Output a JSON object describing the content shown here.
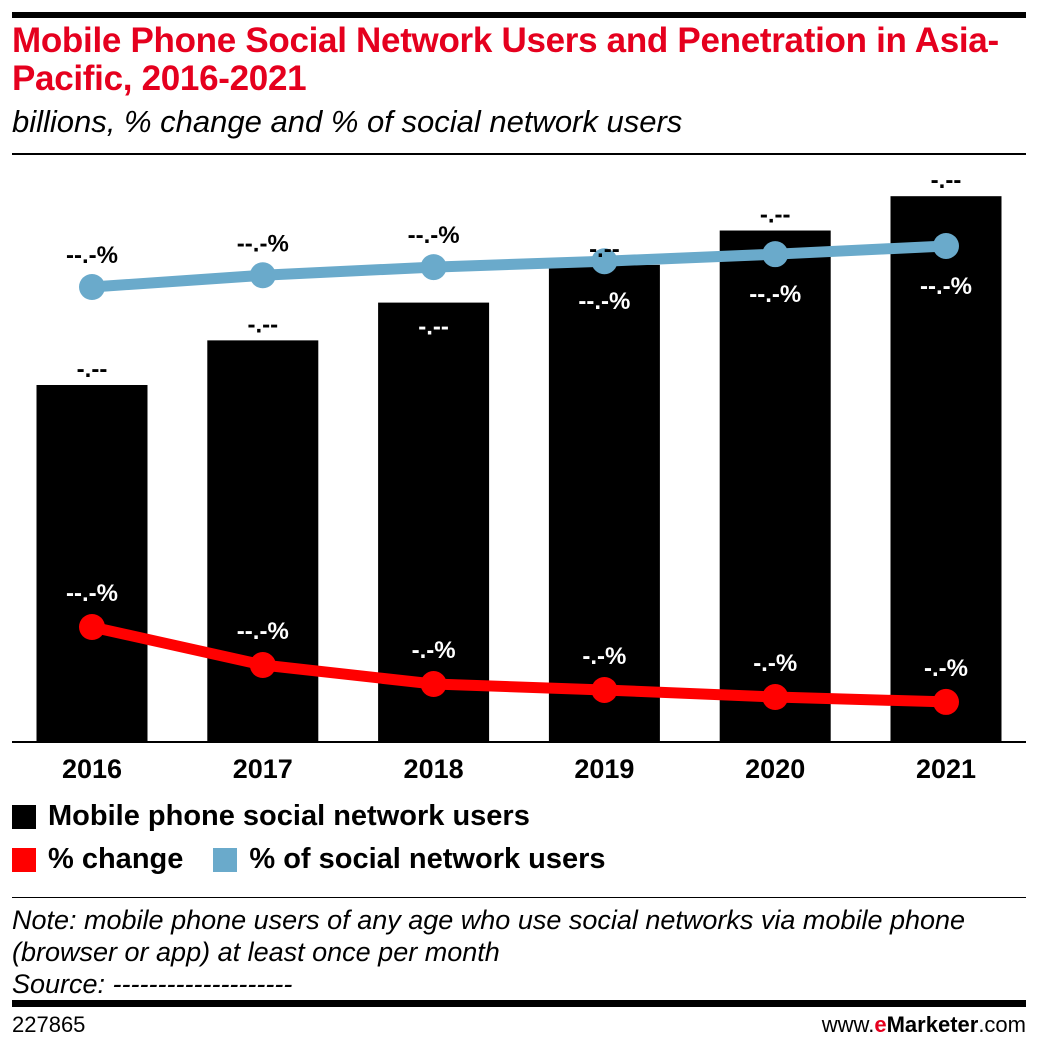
{
  "header": {
    "title": "Mobile Phone Social Network Users and Penetration in Asia-Pacific, 2016-2021",
    "subtitle": "billions, % change and % of social network users"
  },
  "chart_data": {
    "type": "bar",
    "title": "Mobile Phone Social Network Users and Penetration in Asia-Pacific, 2016-2021",
    "subtitle": "billions, % change and % of social network users",
    "categories": [
      "2016",
      "2017",
      "2018",
      "2019",
      "2020",
      "2021"
    ],
    "ylim": [
      0,
      1.71
    ],
    "grid": false,
    "legend_position": "bottom",
    "values_note": "values estimated from geometry; labels masked in original",
    "series": [
      {
        "name": "Mobile phone social network users",
        "type": "bar",
        "color": "#000000",
        "values": [
          1.04,
          1.17,
          1.28,
          1.39,
          1.49,
          1.59
        ],
        "labels": [
          "-.--",
          "-.--",
          "-.--",
          "-.--",
          "-.--",
          "-.--"
        ]
      },
      {
        "name": "% change",
        "type": "line",
        "color": "#ff0000",
        "values": [
          26.0,
          19.0,
          15.5,
          14.4,
          13.1,
          12.2
        ],
        "labels": [
          "--.-%",
          "--.-%",
          "-.-%",
          "-.-%",
          "-.-%",
          "-.-%"
        ]
      },
      {
        "name": "% of social network users",
        "type": "line",
        "color": "#6aaacb",
        "values": [
          80.0,
          82.0,
          83.4,
          84.4,
          85.6,
          87.0
        ],
        "labels": [
          "--.-%",
          "--.-%",
          "--.-%",
          "--.-%",
          "--.-%",
          "--.-%"
        ]
      }
    ]
  },
  "legend": {
    "bar": "Mobile phone social network users",
    "change": "% change",
    "share": "% of social network users"
  },
  "note": {
    "text": "Note: mobile phone users of any age who use social networks via mobile phone (browser or app) at least once per month",
    "source": "Source: --------------------"
  },
  "footer": {
    "id": "227865",
    "brand_prefix": "www.",
    "brand_e": "e",
    "brand_name": "Marketer",
    "brand_suffix": ".com"
  },
  "colors": {
    "title": "#e5001e",
    "bar": "#000000",
    "change": "#ff0000",
    "share": "#6aaacb"
  }
}
